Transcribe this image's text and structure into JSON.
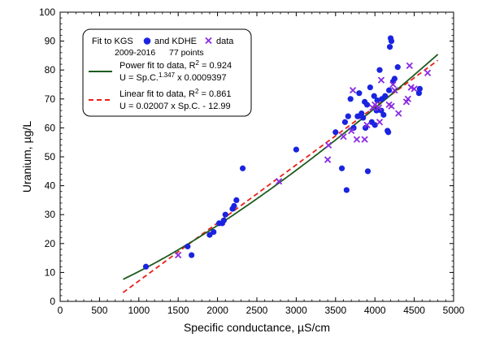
{
  "chart_data": {
    "type": "scatter",
    "xlabel": "Specific conductance, µS/cm",
    "ylabel": "Uranium, µg/L",
    "xlim": [
      0,
      5000
    ],
    "ylim": [
      0,
      100
    ],
    "xticks": [
      0,
      500,
      1000,
      1500,
      2000,
      2500,
      3000,
      3500,
      4000,
      4500,
      5000
    ],
    "yticks": [
      0,
      10,
      20,
      30,
      40,
      50,
      60,
      70,
      80,
      90,
      100
    ],
    "grid": false,
    "legend_position": "top-left",
    "legend": {
      "line1_a": "Fit to KGS",
      "line1_b": "and KDHE",
      "line1_c": "data",
      "line2_a": "2009-2016",
      "line2_b": "77 points",
      "power_title": "Power fit to data, R",
      "power_r2_exp": "2",
      "power_r2_val": " = 0.924",
      "power_eq_a": "U = Sp.C.",
      "power_eq_exp": "1.347",
      "power_eq_b": " x 0.0009397",
      "linear_title": "Linear fit to data, R",
      "linear_r2_exp": "2",
      "linear_r2_val": " = 0.861",
      "linear_eq": "U = 0.02007 x Sp.C. - 12.99"
    },
    "series": [
      {
        "name": "KGS",
        "marker": "circle",
        "color": "#1a23e0",
        "points": [
          [
            1090,
            12
          ],
          [
            1620,
            19
          ],
          [
            1670,
            16
          ],
          [
            1900,
            23
          ],
          [
            1950,
            24
          ],
          [
            2020,
            27
          ],
          [
            2060,
            27
          ],
          [
            2080,
            28
          ],
          [
            2100,
            30
          ],
          [
            2190,
            32
          ],
          [
            2210,
            33
          ],
          [
            2240,
            35
          ],
          [
            2320,
            46
          ],
          [
            3000,
            52.5
          ],
          [
            3500,
            58.5
          ],
          [
            3580,
            46
          ],
          [
            3620,
            62
          ],
          [
            3640,
            38.5
          ],
          [
            3660,
            64
          ],
          [
            3690,
            70
          ],
          [
            3730,
            60
          ],
          [
            3780,
            64
          ],
          [
            3800,
            72
          ],
          [
            3830,
            65
          ],
          [
            3850,
            63.5
          ],
          [
            3870,
            69
          ],
          [
            3880,
            60
          ],
          [
            3900,
            68
          ],
          [
            3910,
            45
          ],
          [
            3940,
            74
          ],
          [
            3960,
            62
          ],
          [
            3990,
            71
          ],
          [
            4000,
            61
          ],
          [
            4020,
            66
          ],
          [
            4030,
            69.5
          ],
          [
            4060,
            80
          ],
          [
            4080,
            66
          ],
          [
            4090,
            70
          ],
          [
            4110,
            64.5
          ],
          [
            4130,
            71
          ],
          [
            4160,
            59
          ],
          [
            4170,
            58.5
          ],
          [
            4180,
            73
          ],
          [
            4190,
            88
          ],
          [
            4200,
            91
          ],
          [
            4210,
            90
          ],
          [
            4230,
            76
          ],
          [
            4250,
            77
          ],
          [
            4290,
            81
          ],
          [
            4560,
            72
          ],
          [
            4570,
            73.5
          ]
        ]
      },
      {
        "name": "KDHE",
        "marker": "x",
        "color": "#8a2be2",
        "points": [
          [
            1500,
            16
          ],
          [
            2780,
            41.5
          ],
          [
            3400,
            49
          ],
          [
            3410,
            54
          ],
          [
            3600,
            57
          ],
          [
            3700,
            59
          ],
          [
            3720,
            73
          ],
          [
            3770,
            56
          ],
          [
            3870,
            56
          ],
          [
            3900,
            61
          ],
          [
            3970,
            67
          ],
          [
            4000,
            68
          ],
          [
            4050,
            67
          ],
          [
            4060,
            62
          ],
          [
            4080,
            76.5
          ],
          [
            4180,
            68
          ],
          [
            4210,
            67.5
          ],
          [
            4230,
            75
          ],
          [
            4250,
            73
          ],
          [
            4300,
            65
          ],
          [
            4400,
            69
          ],
          [
            4420,
            70
          ],
          [
            4440,
            81.5
          ],
          [
            4460,
            74
          ],
          [
            4500,
            73.5
          ],
          [
            4670,
            79
          ]
        ]
      }
    ],
    "fits": [
      {
        "name": "Power fit",
        "coefficient": 0.0009397,
        "exponent": 1.347,
        "r2": 0.924,
        "x_range": [
          800,
          4800
        ],
        "color": "#1e5b1e"
      },
      {
        "name": "Linear fit",
        "slope": 0.02007,
        "intercept": -12.99,
        "r2": 0.861,
        "x_range": [
          800,
          4800
        ],
        "color": "#e8201a"
      }
    ]
  }
}
